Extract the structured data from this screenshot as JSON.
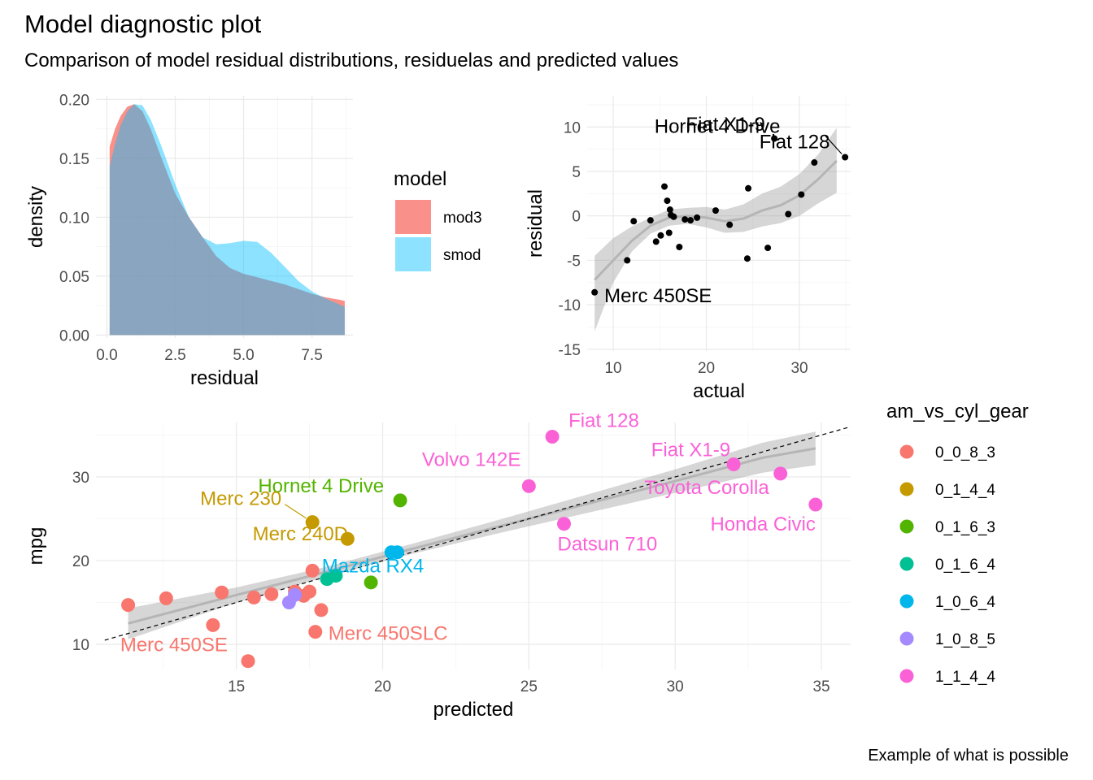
{
  "title": "Model diagnostic plot",
  "subtitle": "Comparison of model residual distributions, residuelas and predicted values",
  "caption": "Example of what is possible",
  "chart_data": [
    {
      "type": "area",
      "panel": "density",
      "xlabel": "residual",
      "ylabel": "density",
      "xlim": [
        -0.4,
        9.0
      ],
      "ylim": [
        -0.0025,
        0.203
      ],
      "xticks": [
        0,
        2.5,
        5,
        7.5
      ],
      "xtick_labels": [
        "0.0",
        "2.5",
        "5.0",
        "7.5"
      ],
      "yticks": [
        0,
        0.05,
        0.1,
        0.15,
        0.2
      ],
      "ytick_labels": [
        "0.00",
        "0.05",
        "0.10",
        "0.15",
        "0.20"
      ],
      "legend_title": "model",
      "legend_position": "right",
      "series": [
        {
          "name": "mod3",
          "color": "#F8766D",
          "x": [
            0.1,
            0.3,
            0.5,
            0.75,
            1.0,
            1.3,
            1.6,
            2.0,
            2.5,
            3.0,
            3.5,
            4.0,
            4.5,
            5.0,
            5.5,
            6.0,
            6.5,
            7.0,
            7.5,
            8.0,
            8.5,
            8.7
          ],
          "y": [
            0.16,
            0.175,
            0.186,
            0.194,
            0.196,
            0.19,
            0.175,
            0.15,
            0.12,
            0.1,
            0.083,
            0.067,
            0.057,
            0.052,
            0.049,
            0.046,
            0.043,
            0.039,
            0.035,
            0.032,
            0.03,
            0.029
          ]
        },
        {
          "name": "smod",
          "color": "#00BFFF",
          "x": [
            0.1,
            0.3,
            0.5,
            0.75,
            1.0,
            1.3,
            1.6,
            2.0,
            2.5,
            3.0,
            3.5,
            4.0,
            4.5,
            5.0,
            5.5,
            6.0,
            6.5,
            7.0,
            7.5,
            8.0,
            8.5,
            8.7
          ],
          "y": [
            0.143,
            0.162,
            0.178,
            0.19,
            0.196,
            0.195,
            0.183,
            0.16,
            0.128,
            0.1,
            0.083,
            0.077,
            0.078,
            0.08,
            0.079,
            0.07,
            0.058,
            0.046,
            0.037,
            0.031,
            0.026,
            0.024
          ]
        }
      ]
    },
    {
      "type": "scatter",
      "panel": "residuals",
      "xlabel": "actual",
      "ylabel": "residual",
      "xlim": [
        7.2,
        35.5
      ],
      "ylim": [
        -15.2,
        13.5
      ],
      "xticks": [
        10,
        20,
        30
      ],
      "yticks": [
        -15,
        -10,
        -5,
        0,
        5,
        10
      ],
      "smooth": {
        "x": [
          8,
          10,
          12,
          14,
          16,
          18,
          20,
          22,
          24,
          26,
          28,
          30,
          32,
          34
        ],
        "y": [
          -7.2,
          -5.0,
          -2.8,
          -1.1,
          -0.2,
          0.0,
          -0.2,
          -0.6,
          -0.3,
          0.6,
          1.2,
          2.3,
          4.1,
          6.2
        ],
        "lower": [
          -13,
          -7.5,
          -4.0,
          -2.0,
          -1.1,
          -0.9,
          -1.3,
          -1.9,
          -1.8,
          -1.2,
          -0.8,
          0.0,
          1.4,
          2.6
        ],
        "upper": [
          -4.5,
          -2.5,
          -1.2,
          -0.2,
          0.7,
          0.9,
          1.0,
          0.7,
          1.3,
          2.5,
          3.3,
          4.7,
          6.9,
          9.9
        ]
      },
      "points": {
        "x": [
          8.0,
          11.5,
          12.2,
          14.0,
          14.6,
          15.1,
          15.5,
          15.8,
          16.0,
          16.1,
          16.2,
          16.5,
          17.1,
          17.7,
          18.3,
          19.0,
          21.0,
          22.5,
          24.4,
          24.5,
          26.6,
          27.3,
          28.8,
          30.2,
          31.6,
          34.9
        ],
        "y": [
          -8.6,
          -5.0,
          -0.6,
          -0.5,
          -2.9,
          -2.2,
          3.3,
          1.7,
          -1.9,
          0.7,
          0.1,
          -0.1,
          -3.5,
          -0.4,
          -0.5,
          -0.2,
          0.6,
          -1.0,
          -4.8,
          3.1,
          -3.6,
          8.7,
          0.2,
          2.4,
          6.0,
          6.6
        ]
      },
      "labels": [
        {
          "text": "Hornet 4 Drive",
          "x": 27.3,
          "y": 8.7
        },
        {
          "text": "Fiat 128",
          "x": 34.9,
          "y": 6.6
        },
        {
          "text": "Fiat X1-9",
          "x": 27.3,
          "y": 5.1
        },
        {
          "text": "Merc 450SE",
          "x": 8.0,
          "y": -8.6
        }
      ]
    },
    {
      "type": "scatter",
      "panel": "predicted-vs-actual",
      "xlabel": "predicted",
      "ylabel": "mpg",
      "xlim": [
        10.2,
        36.0
      ],
      "ylim": [
        7.0,
        36.5
      ],
      "xticks": [
        15,
        20,
        25,
        30,
        35
      ],
      "yticks": [
        10,
        20,
        30
      ],
      "legend_title": "am_vs_cyl_gear",
      "legend_position": "right",
      "reference_line": "y = x",
      "smooth": {
        "x": [
          11.3,
          15,
          18,
          21,
          24,
          27,
          30,
          33,
          34.8
        ],
        "y": [
          12.5,
          15.9,
          18.6,
          21.4,
          24.1,
          26.8,
          29.5,
          32.3,
          33.4
        ],
        "lower": [
          10.6,
          15.0,
          18.0,
          20.8,
          23.3,
          25.7,
          28.1,
          30.5,
          31.4
        ],
        "upper": [
          14.3,
          16.8,
          19.2,
          22.0,
          24.9,
          27.9,
          30.9,
          34.1,
          35.4
        ]
      },
      "series": [
        {
          "name": "0_0_8_3",
          "color": "#F8766D",
          "x": [
            11.3,
            12.6,
            14.2,
            14.5,
            15.4,
            15.6,
            16.2,
            17.0,
            17.3,
            17.5,
            17.6,
            17.7,
            17.9
          ],
          "y": [
            14.7,
            15.5,
            12.3,
            16.2,
            8.0,
            15.6,
            16.0,
            16.3,
            15.8,
            16.3,
            18.8,
            11.5,
            14.1
          ]
        },
        {
          "name": "0_1_4_4",
          "color": "#C49A00",
          "x": [
            17.6,
            18.8
          ],
          "y": [
            24.6,
            22.6
          ]
        },
        {
          "name": "0_1_6_3",
          "color": "#53B400",
          "x": [
            19.6,
            20.6
          ],
          "y": [
            17.4,
            27.2
          ]
        },
        {
          "name": "0_1_6_4",
          "color": "#00C094",
          "x": [
            18.1,
            18.4
          ],
          "y": [
            17.8,
            18.2
          ]
        },
        {
          "name": "1_0_6_4",
          "color": "#00B6EB",
          "x": [
            20.3,
            20.5
          ],
          "y": [
            21.0,
            21.0
          ]
        },
        {
          "name": "1_0_8_5",
          "color": "#A58AFF",
          "x": [
            16.8,
            17.0
          ],
          "y": [
            15.0,
            15.9
          ]
        },
        {
          "name": "1_1_4_4",
          "color": "#FB61D7",
          "x": [
            25.0,
            25.8,
            26.2,
            32.0,
            33.6,
            34.8
          ],
          "y": [
            28.9,
            34.8,
            24.4,
            31.5,
            30.4,
            26.7
          ]
        }
      ],
      "labels": [
        {
          "text": "Fiat 128",
          "group": "1_1_4_4",
          "x": 25.8,
          "y": 34.8
        },
        {
          "text": "Volvo 142E",
          "group": "1_1_4_4",
          "x": 25.0,
          "y": 28.9
        },
        {
          "text": "Fiat X1-9",
          "group": "1_1_4_4",
          "x": 32.0,
          "y": 31.5
        },
        {
          "text": "Toyota Corolla",
          "group": "1_1_4_4",
          "x": 33.6,
          "y": 30.4
        },
        {
          "text": "Honda Civic",
          "group": "1_1_4_4",
          "x": 34.8,
          "y": 26.7
        },
        {
          "text": "Datsun 710",
          "group": "1_1_4_4",
          "x": 26.2,
          "y": 24.4
        },
        {
          "text": "Hornet 4 Drive",
          "group": "0_1_6_3",
          "x": 20.6,
          "y": 27.2
        },
        {
          "text": "Merc 230",
          "group": "0_1_4_4",
          "x": 17.6,
          "y": 24.6
        },
        {
          "text": "Merc 240D",
          "group": "0_1_4_4",
          "x": 18.8,
          "y": 22.6
        },
        {
          "text": "Mazda RX4",
          "group": "1_0_6_4",
          "x": 20.5,
          "y": 21.0
        },
        {
          "text": "Merc 450SLC",
          "group": "0_0_8_3",
          "x": 17.7,
          "y": 11.5
        },
        {
          "text": "Merc 450SE",
          "group": "0_0_8_3",
          "x": 14.2,
          "y": 12.3
        }
      ]
    }
  ]
}
